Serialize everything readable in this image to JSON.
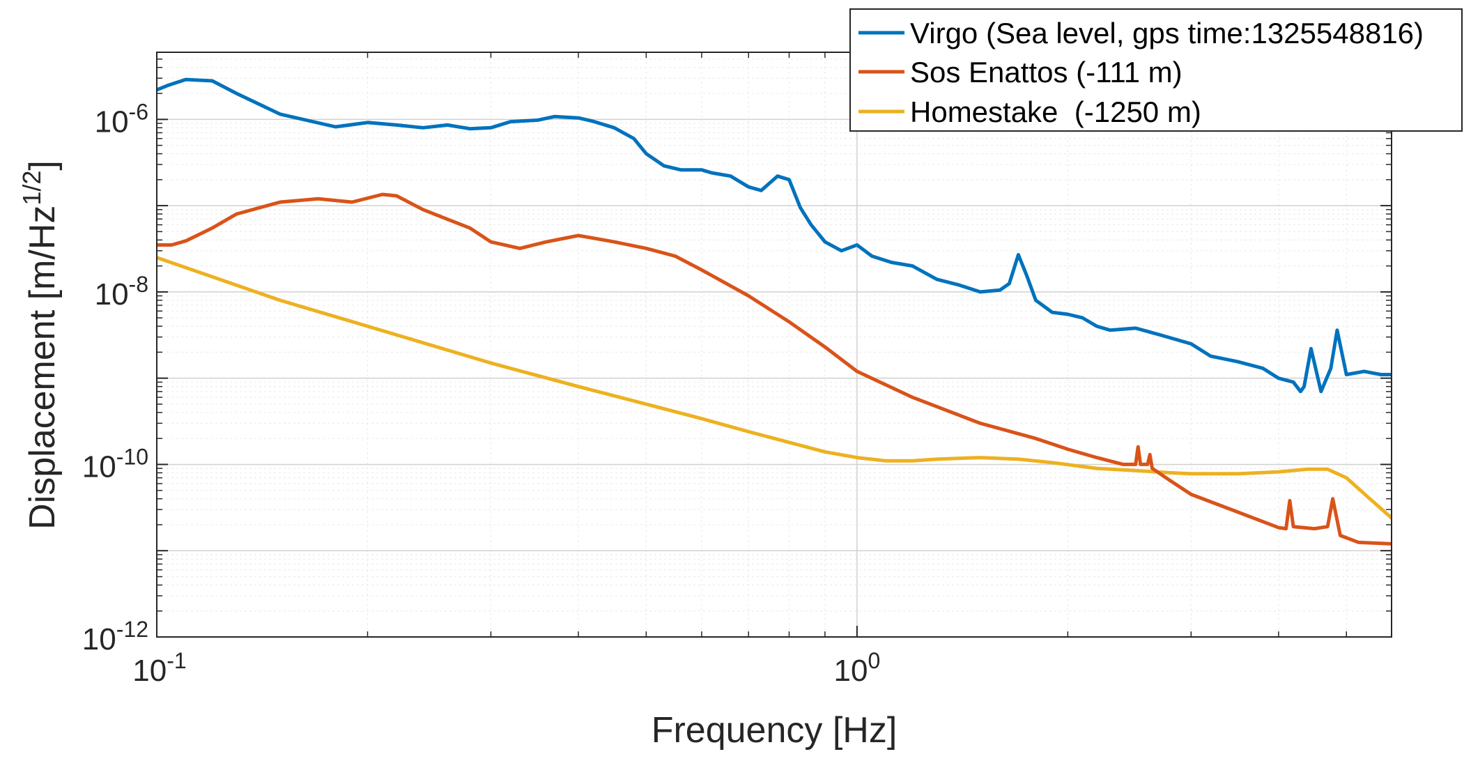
{
  "chart_data": {
    "type": "line",
    "title": "",
    "xlabel": "Frequency [Hz]",
    "ylabel": "Displacement [m/Hz",
    "ylabel_sup": "1/2",
    "ylabel_close": "]",
    "xscale": "log",
    "yscale": "log",
    "xlim": [
      0.1,
      5.8
    ],
    "ylim": [
      1e-12,
      6e-06
    ],
    "grid": true,
    "legend_position": "top-right",
    "x_ticks": [
      {
        "value": 0.1,
        "base": "10",
        "exp": "-1"
      },
      {
        "value": 1,
        "base": "10",
        "exp": "0"
      }
    ],
    "y_ticks": [
      {
        "value": 1e-12,
        "base": "10",
        "exp": "-12"
      },
      {
        "value": 1e-10,
        "base": "10",
        "exp": "-10"
      },
      {
        "value": 1e-08,
        "base": "10",
        "exp": "-8"
      },
      {
        "value": 1e-06,
        "base": "10",
        "exp": "-6"
      }
    ],
    "series": [
      {
        "name": "Virgo (Sea level, gps time:1325548816)",
        "color": "#0072BD",
        "x": [
          0.1,
          0.104,
          0.11,
          0.12,
          0.13,
          0.15,
          0.18,
          0.2,
          0.22,
          0.24,
          0.26,
          0.28,
          0.3,
          0.32,
          0.35,
          0.37,
          0.4,
          0.42,
          0.45,
          0.48,
          0.5,
          0.53,
          0.56,
          0.6,
          0.62,
          0.66,
          0.7,
          0.73,
          0.77,
          0.8,
          0.83,
          0.86,
          0.9,
          0.95,
          1.0,
          1.05,
          1.12,
          1.2,
          1.3,
          1.4,
          1.5,
          1.6,
          1.65,
          1.7,
          1.75,
          1.8,
          1.9,
          2.0,
          2.1,
          2.2,
          2.3,
          2.5,
          2.7,
          3.0,
          3.2,
          3.5,
          3.8,
          4.0,
          4.2,
          4.3,
          4.35,
          4.45,
          4.6,
          4.75,
          4.85,
          5.0,
          5.3,
          5.6,
          5.8
        ],
        "values": [
          2.2e-06,
          2.5e-06,
          2.9e-06,
          2.8e-06,
          2e-06,
          1.15e-06,
          8.2e-07,
          9.2e-07,
          8.6e-07,
          8e-07,
          8.6e-07,
          7.8e-07,
          8e-07,
          9.4e-07,
          9.8e-07,
          1.08e-06,
          1.04e-06,
          9.5e-07,
          8e-07,
          6e-07,
          4e-07,
          2.9e-07,
          2.6e-07,
          2.6e-07,
          2.4e-07,
          2.2e-07,
          1.65e-07,
          1.5e-07,
          2.2e-07,
          2e-07,
          9.5e-08,
          6e-08,
          3.8e-08,
          3e-08,
          3.5e-08,
          2.6e-08,
          2.2e-08,
          2e-08,
          1.4e-08,
          1.2e-08,
          1e-08,
          1.05e-08,
          1.25e-08,
          2.7e-08,
          1.5e-08,
          8e-09,
          5.8e-09,
          5.5e-09,
          5e-09,
          4e-09,
          3.6e-09,
          3.8e-09,
          3.2e-09,
          2.5e-09,
          1.8e-09,
          1.55e-09,
          1.3e-09,
          1e-09,
          9e-10,
          7e-10,
          8e-10,
          2.2e-09,
          7e-10,
          1.3e-09,
          3.6e-09,
          1.1e-09,
          1.2e-09,
          1.1e-09,
          1.1e-09
        ]
      },
      {
        "name": "Sos Enattos (-111 m)",
        "color": "#D95319",
        "x": [
          0.1,
          0.105,
          0.11,
          0.12,
          0.13,
          0.15,
          0.17,
          0.19,
          0.21,
          0.22,
          0.24,
          0.28,
          0.3,
          0.33,
          0.36,
          0.4,
          0.42,
          0.45,
          0.5,
          0.55,
          0.6,
          0.7,
          0.8,
          0.9,
          1.0,
          1.2,
          1.5,
          1.8,
          2.0,
          2.2,
          2.4,
          2.5,
          2.52,
          2.54,
          2.6,
          2.62,
          2.64,
          2.8,
          3.0,
          3.5,
          4.0,
          4.1,
          4.15,
          4.2,
          4.5,
          4.7,
          4.78,
          4.9,
          5.2,
          5.8
        ],
        "values": [
          3.5e-08,
          3.5e-08,
          3.9e-08,
          5.5e-08,
          8e-08,
          1.1e-07,
          1.2e-07,
          1.1e-07,
          1.35e-07,
          1.3e-07,
          9e-08,
          5.5e-08,
          3.8e-08,
          3.2e-08,
          3.8e-08,
          4.5e-08,
          4.2e-08,
          3.8e-08,
          3.2e-08,
          2.6e-08,
          1.8e-08,
          9e-09,
          4.5e-09,
          2.3e-09,
          1.2e-09,
          6e-10,
          3e-10,
          2e-10,
          1.5e-10,
          1.2e-10,
          1e-10,
          1e-10,
          1.6e-10,
          1e-10,
          1e-10,
          1.3e-10,
          9e-11,
          6.5e-11,
          4.5e-11,
          2.8e-11,
          1.85e-11,
          1.8e-11,
          3.8e-11,
          1.9e-11,
          1.8e-11,
          1.9e-11,
          4e-11,
          1.5e-11,
          1.25e-11,
          1.2e-11
        ]
      },
      {
        "name": "Homestake  (-1250 m)",
        "color": "#EDB120",
        "x": [
          0.1,
          0.15,
          0.2,
          0.3,
          0.4,
          0.5,
          0.6,
          0.7,
          0.8,
          0.9,
          1.0,
          1.1,
          1.2,
          1.3,
          1.5,
          1.7,
          1.9,
          2.2,
          2.5,
          2.8,
          3.0,
          3.5,
          4.0,
          4.4,
          4.7,
          5.0,
          5.4,
          5.8
        ],
        "values": [
          2.5e-08,
          8e-09,
          4e-09,
          1.5e-09,
          8e-10,
          5e-10,
          3.4e-10,
          2.4e-10,
          1.8e-10,
          1.4e-10,
          1.2e-10,
          1.1e-10,
          1.1e-10,
          1.15e-10,
          1.2e-10,
          1.15e-10,
          1.05e-10,
          9e-11,
          8.5e-11,
          8e-11,
          7.8e-11,
          7.8e-11,
          8.2e-11,
          8.8e-11,
          8.8e-11,
          7e-11,
          4e-11,
          2.4e-11
        ]
      }
    ]
  }
}
